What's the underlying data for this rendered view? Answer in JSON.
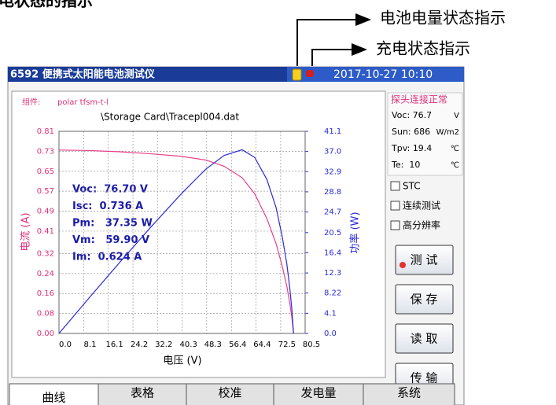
{
  "caption": "电状态的指示",
  "annotations": [
    "电池电量状态指示",
    "充电状态指示"
  ],
  "header": {
    "title": "6592 便携式太阳能电池测试仪",
    "datetime": "2017-10-27  10:10"
  },
  "chart_data": {
    "type": "line",
    "component_label": "组件:",
    "component": "polar tfsm-t-l",
    "file": "\\Storage Card\\Tracepl004.dat",
    "xlabel": "电压 (V)",
    "ylabel": "电流 (A)",
    "y2label": "功率 (W)",
    "x": [
      0,
      10,
      20,
      30,
      40,
      48,
      54,
      59.9,
      64,
      68,
      71,
      73,
      74.5,
      75.5,
      76.2,
      76.7
    ],
    "series": [
      {
        "color": "#e8408a",
        "values": [
          0.735,
          0.733,
          0.728,
          0.72,
          0.71,
          0.695,
          0.67,
          0.624,
          0.56,
          0.46,
          0.36,
          0.27,
          0.19,
          0.12,
          0.06,
          0
        ]
      },
      {
        "color": "#2a2ad8",
        "axis": "y2",
        "values": [
          0,
          7.33,
          14.56,
          21.6,
          28.4,
          33.4,
          36.2,
          37.35,
          35.8,
          31.3,
          25.6,
          19.7,
          14.2,
          9.1,
          4.6,
          0
        ]
      }
    ],
    "xlim": [
      0,
      80.5
    ],
    "ylim": [
      0,
      0.81
    ],
    "y2lim": [
      0,
      41.1
    ],
    "xticks": [
      {
        "value": 0,
        "label": "0.0"
      },
      8.1,
      16.1,
      24.2,
      32.2,
      40.3,
      48.3,
      56.4,
      64.4,
      72.5,
      80.5
    ],
    "yticks": [
      {
        "value": 0,
        "label": "0.00"
      },
      0.08,
      0.16,
      0.24,
      0.32,
      0.41,
      0.49,
      0.57,
      0.65,
      0.73,
      0.81
    ],
    "y2ticks": [
      {
        "value": 0,
        "label": "0.0"
      },
      4.1,
      8.22,
      12.3,
      16.4,
      20.5,
      24.7,
      28.8,
      32.9,
      {
        "value": 37,
        "label": "37.0"
      },
      41.1
    ],
    "grid": true,
    "readouts": [
      "Voc:  76.70 V",
      "Isc:  0.736 A",
      "Pm:   37.35 W",
      "Vm:   59.90 V",
      "Im:  0.624 A"
    ]
  },
  "side_panel": {
    "status": "探头连接正常",
    "readings": [
      {
        "label": "Voc: 76.7",
        "unit": "V"
      },
      {
        "label": "Sun: 686",
        "unit": "W/m2"
      },
      {
        "label": "Tpv: 19.4",
        "unit": "℃"
      },
      {
        "label": "Te:  10",
        "unit": "℃"
      }
    ],
    "checkboxes": [
      "STC",
      "连续测试",
      "高分辨率"
    ],
    "buttons": [
      "测 试",
      "保 存",
      "读 取",
      "传 输"
    ]
  },
  "tabs": [
    "曲线",
    "表格",
    "校准",
    "发电量",
    "系统"
  ]
}
